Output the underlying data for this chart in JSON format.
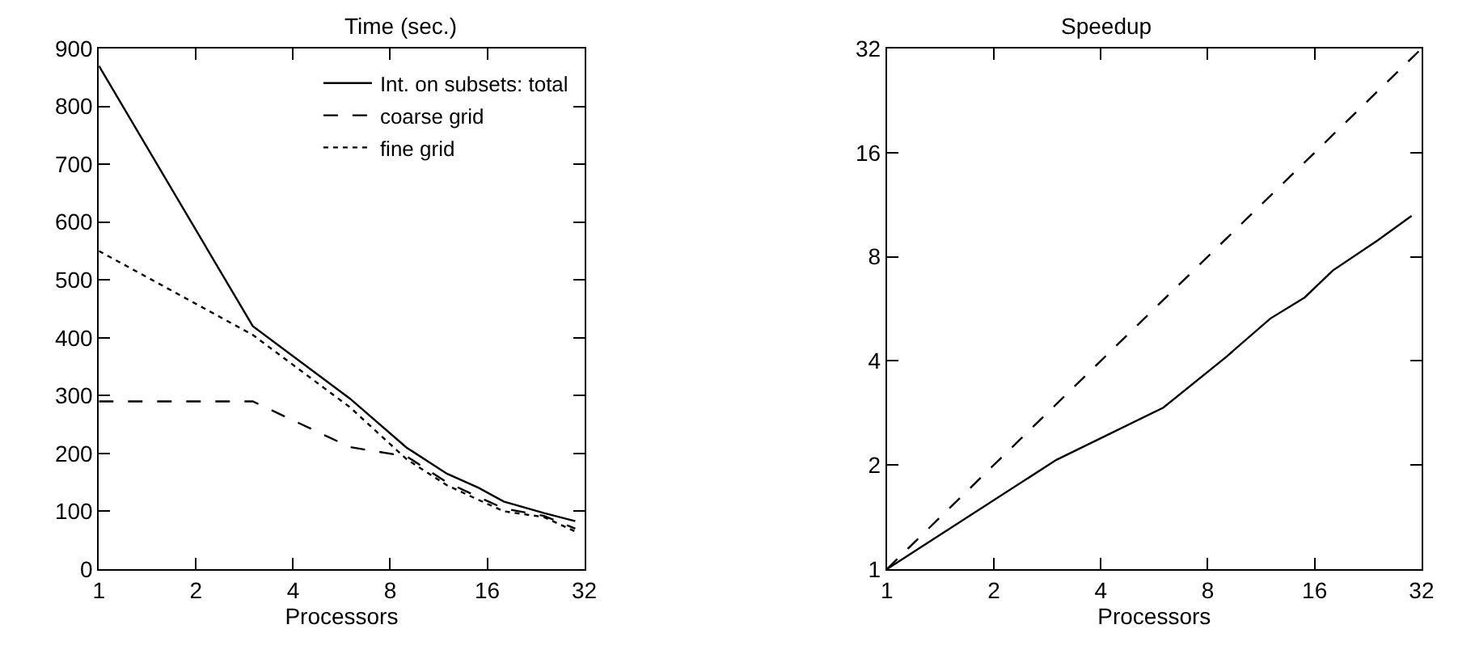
{
  "chart_data": [
    {
      "type": "line",
      "title": "Time (sec.)",
      "xlabel": "Processors",
      "log": "x",
      "legend": "top right",
      "grid": false,
      "x": [
        1,
        3,
        6,
        9,
        12,
        15,
        18,
        24,
        30
      ],
      "xlim": [
        1,
        32
      ],
      "xticks": [
        1,
        2,
        4,
        8,
        16,
        32
      ],
      "ylim": [
        0,
        900
      ],
      "yticks": [
        0,
        100,
        200,
        300,
        400,
        500,
        600,
        700,
        800,
        900
      ],
      "series": [
        {
          "name": "Int. on subsets: total",
          "color": "#000000",
          "line_style": "solid",
          "values": [
            870,
            420,
            295,
            210,
            165,
            141,
            117,
            97,
            83
          ]
        },
        {
          "name": "coarse grid",
          "color": "#000000",
          "line_style": "dashed",
          "values": [
            290,
            290,
            211,
            195,
            150,
            125,
            105,
            92,
            70
          ]
        },
        {
          "name": "fine grid",
          "color": "#000000",
          "line_style": "dotted",
          "values": [
            550,
            405,
            280,
            190,
            145,
            120,
            100,
            90,
            65
          ]
        }
      ]
    },
    {
      "type": "line",
      "title": "Speedup",
      "xlabel": "Processors",
      "log": "xy",
      "legend": false,
      "grid": false,
      "xlim": [
        1,
        32
      ],
      "xticks": [
        1,
        2,
        4,
        8,
        16,
        32
      ],
      "ylim": [
        1,
        32
      ],
      "yticks": [
        1,
        2,
        4,
        8,
        16,
        32
      ],
      "series": [
        {
          "color": "#000000",
          "line_style": "solid",
          "x": [
            1,
            3,
            6,
            9,
            12,
            15,
            18,
            24,
            30
          ],
          "values": [
            1,
            2.07,
            2.93,
            4.1,
            5.3,
            6.1,
            7.3,
            8.9,
            10.5
          ]
        },
        {
          "color": "#000000",
          "line_style": "dashed",
          "x": [
            1,
            32
          ],
          "values": [
            1,
            32
          ]
        }
      ]
    }
  ]
}
